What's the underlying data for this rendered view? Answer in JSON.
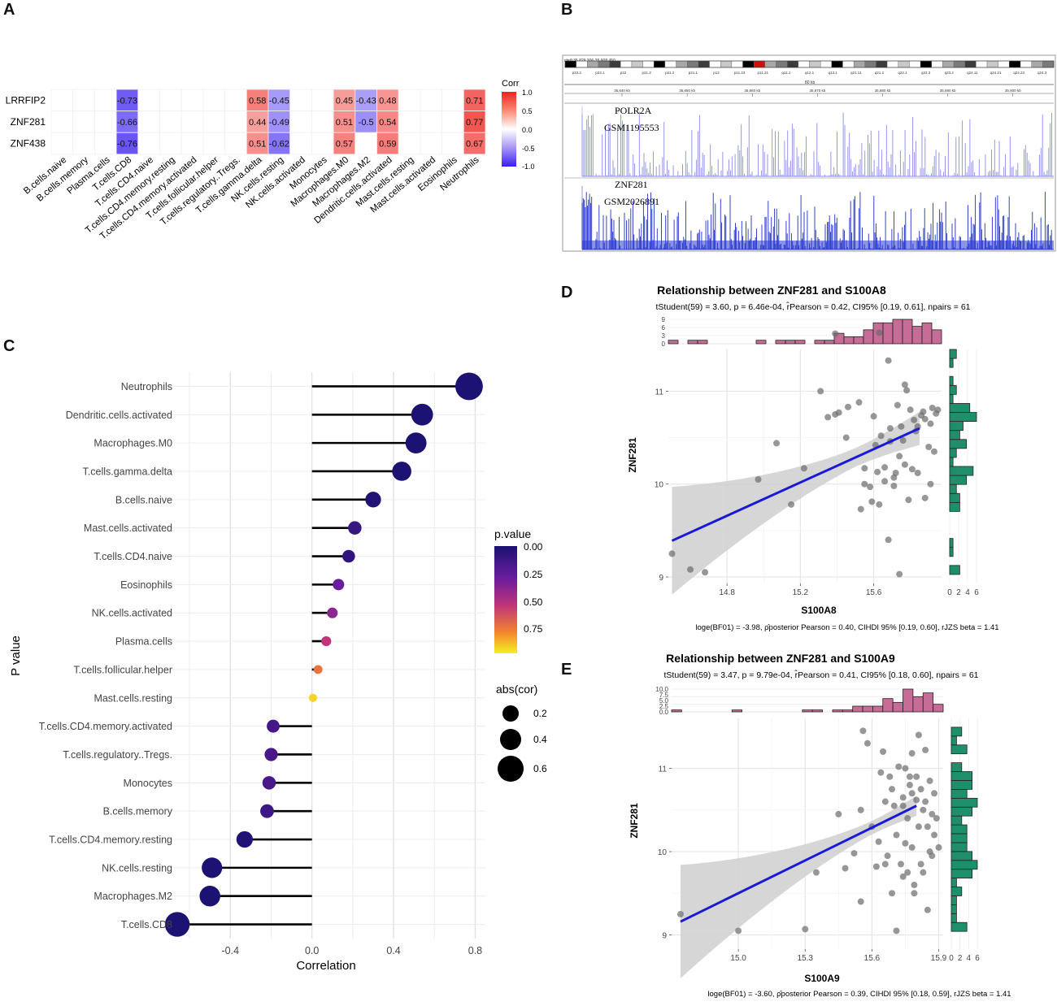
{
  "chart_data": [
    {
      "panel": "A",
      "type": "heatmap",
      "legend_title": "Corr",
      "legend_ticks": [
        "1.0",
        "0.5",
        "0.0",
        "-0.5",
        "-1.0"
      ],
      "rows": [
        "LRRFIP2",
        "ZNF281",
        "ZNF438"
      ],
      "columns": [
        "B.cells.naive",
        "B.cells.memory",
        "Plasma.cells",
        "T.cells.CD8",
        "T.cells.CD4.naive",
        "T.cells.CD4.memory.resting",
        "T.cells.CD4.memory.activated",
        "T.cells.follicular.helper",
        "T.cells.regulatory..Tregs.",
        "T.cells.gamma.delta",
        "NK.cells.resting",
        "NK.cells.activated",
        "Monocytes",
        "Macrophages.M0",
        "Macrophages.M2",
        "Dendritic.cells.activated",
        "Mast.cells.resting",
        "Mast.cells.activated",
        "Eosinophils",
        "Neutrophils"
      ],
      "values": [
        [
          null,
          null,
          null,
          -0.73,
          null,
          null,
          null,
          null,
          null,
          0.58,
          -0.45,
          null,
          null,
          0.45,
          -0.43,
          0.48,
          null,
          null,
          null,
          0.71
        ],
        [
          null,
          null,
          null,
          -0.66,
          null,
          null,
          null,
          null,
          null,
          0.44,
          -0.49,
          null,
          null,
          0.51,
          -0.5,
          0.54,
          null,
          null,
          null,
          0.77
        ],
        [
          null,
          null,
          null,
          -0.76,
          null,
          null,
          null,
          null,
          null,
          0.51,
          -0.62,
          null,
          null,
          0.57,
          null,
          0.59,
          null,
          null,
          null,
          0.67
        ]
      ],
      "labels": [
        [
          "",
          "",
          "",
          "-0.73",
          "",
          "",
          "",
          "",
          "",
          "0.58",
          "-0.45",
          "",
          "",
          "0.45",
          "-0.43",
          "0.48",
          "",
          "",
          "",
          "0.71"
        ],
        [
          "",
          "",
          "",
          "-0.66",
          "",
          "",
          "",
          "",
          "",
          "0.44",
          "-0.49",
          "",
          "",
          "0.51",
          "-0.5",
          "0.54",
          "",
          "",
          "",
          "0.77"
        ],
        [
          "",
          "",
          "",
          "-0.76",
          "",
          "",
          "",
          "",
          "",
          "0.51",
          "-0.62",
          "",
          "",
          "0.57",
          "",
          "0.59",
          "",
          "",
          "",
          "0.67"
        ]
      ]
    },
    {
      "panel": "B",
      "type": "genome-track",
      "locus": "chr8:35,829,306-35,908,450",
      "scale_label": "80 kb",
      "bands": [
        "p23.2",
        "p23.1",
        "p22",
        "p21.3",
        "p21.2",
        "p21.1",
        "p12",
        "p11.23",
        "p11.21",
        "q11.1",
        "q12.1",
        "q13.1",
        "q21.11",
        "q21.2",
        "q22.1",
        "q22.3",
        "q23.2",
        "q24.11",
        "q24.21",
        "q24.23",
        "q24.3"
      ],
      "coordinates": [
        "35,840 kb",
        "35,850 kb",
        "35,860 kb",
        "35,870 kb",
        "35,880 kb",
        "35,890 kb",
        "35,900 kb"
      ],
      "tracks": [
        {
          "name": "POLR2A",
          "sample": "GSM1195553",
          "color": "#8a8be6"
        },
        {
          "name": "ZNF281",
          "sample": "GSM2026891",
          "color": "#1f2fc8"
        }
      ]
    },
    {
      "panel": "C",
      "type": "lollipop",
      "title": "",
      "xlabel": "Correlation",
      "ylabel": "P value",
      "xlim": [
        -0.7,
        0.85
      ],
      "xticks": [
        -0.4,
        0.0,
        0.4,
        0.8
      ],
      "xtick_labels": [
        "-0.4",
        "0.0",
        "0.4",
        "0.8"
      ],
      "color_legend_title": "p.value",
      "color_ticks": [
        "0.00",
        "0.25",
        "0.50",
        "0.75"
      ],
      "size_legend_title": "abs(cor)",
      "size_ticks": [
        "0.2",
        "0.4",
        "0.6"
      ],
      "categories": [
        "Neutrophils",
        "Dendritic.cells.activated",
        "Macrophages.M0",
        "T.cells.gamma.delta",
        "B.cells.naive",
        "Mast.cells.activated",
        "T.cells.CD4.naive",
        "Eosinophils",
        "NK.cells.activated",
        "Plasma.cells",
        "T.cells.follicular.helper",
        "Mast.cells.resting",
        "T.cells.CD4.memory.activated",
        "T.cells.regulatory..Tregs.",
        "Monocytes",
        "B.cells.memory",
        "T.cells.CD4.memory.resting",
        "NK.cells.resting",
        "Macrophages.M2",
        "T.cells.CD8"
      ],
      "correlation": [
        0.77,
        0.54,
        0.51,
        0.44,
        0.3,
        0.21,
        0.18,
        0.13,
        0.1,
        0.07,
        0.03,
        0.005,
        -0.19,
        -0.2,
        -0.21,
        -0.22,
        -0.33,
        -0.49,
        -0.5,
        -0.66
      ],
      "p_value": [
        0.0,
        0.0,
        0.0,
        0.0,
        0.02,
        0.1,
        0.08,
        0.3,
        0.4,
        0.55,
        0.75,
        0.95,
        0.15,
        0.17,
        0.17,
        0.12,
        0.02,
        0.0,
        0.0,
        0.0
      ]
    },
    {
      "panel": "D",
      "type": "scatter",
      "title": "Relationship between ZNF281 and S100A8",
      "stats_top": "tStudent(59) = 3.60, p = 6.46e-04, r̂Pearson = 0.42, CI95% [0.19, 0.61], npairs = 61",
      "stats_bottom": "loge(BF01) = -3.98, ρ̂posterior Pearson = 0.40, CIHDI 95% [0.19, 0.60], rJZS beta = 1.41",
      "xlabel": "S100A8",
      "ylabel": "ZNF281",
      "xlim": [
        14.48,
        15.97
      ],
      "ylim": [
        8.93,
        11.45
      ],
      "xticks": [
        "14.8",
        "15.2",
        "15.6"
      ],
      "yticks": [
        "9",
        "10",
        "11"
      ],
      "side_hist_ticks": [
        "0",
        "2",
        "4",
        "6"
      ],
      "top_hist_ticks": [
        "0",
        "3",
        "6",
        "9"
      ],
      "regression": {
        "x0": 14.5,
        "y0": 9.39,
        "x1": 15.85,
        "y1": 10.6
      },
      "points": [
        [
          14.5,
          9.25
        ],
        [
          14.6,
          9.08
        ],
        [
          14.68,
          9.05
        ],
        [
          14.97,
          10.05
        ],
        [
          15.07,
          10.44
        ],
        [
          15.15,
          9.78
        ],
        [
          15.22,
          10.17
        ],
        [
          15.31,
          11.0
        ],
        [
          15.35,
          10.72
        ],
        [
          15.39,
          10.75
        ],
        [
          15.41,
          10.77
        ],
        [
          15.46,
          10.83
        ],
        [
          15.39,
          11.62
        ],
        [
          15.45,
          10.5
        ],
        [
          15.52,
          10.88
        ],
        [
          15.53,
          9.73
        ],
        [
          15.55,
          10.17
        ],
        [
          15.55,
          10.0
        ],
        [
          15.58,
          9.97
        ],
        [
          15.59,
          9.81
        ],
        [
          15.6,
          10.73
        ],
        [
          15.61,
          10.42
        ],
        [
          15.63,
          9.78
        ],
        [
          15.64,
          10.52
        ],
        [
          15.66,
          10.18
        ],
        [
          15.66,
          10.03
        ],
        [
          15.68,
          11.33
        ],
        [
          15.69,
          10.6
        ],
        [
          15.69,
          10.46
        ],
        [
          15.71,
          10.07
        ],
        [
          15.71,
          9.98
        ],
        [
          15.72,
          10.12
        ],
        [
          15.73,
          10.85
        ],
        [
          15.74,
          10.3
        ],
        [
          15.75,
          10.62
        ],
        [
          15.76,
          10.47
        ],
        [
          15.77,
          10.21
        ],
        [
          15.77,
          11.07
        ],
        [
          15.78,
          11.01
        ],
        [
          15.79,
          9.83
        ],
        [
          15.8,
          10.8
        ],
        [
          15.81,
          10.16
        ],
        [
          15.82,
          10.69
        ],
        [
          15.83,
          10.57
        ],
        [
          15.84,
          10.62
        ],
        [
          15.84,
          10.12
        ],
        [
          15.86,
          10.74
        ],
        [
          15.87,
          10.78
        ],
        [
          15.88,
          10.7
        ],
        [
          15.88,
          9.85
        ],
        [
          15.9,
          10.4
        ],
        [
          15.91,
          10.0
        ],
        [
          15.92,
          10.82
        ],
        [
          15.93,
          10.35
        ],
        [
          15.94,
          10.76
        ],
        [
          15.95,
          10.8
        ],
        [
          15.62,
          10.13
        ],
        [
          15.63,
          11.63
        ],
        [
          15.68,
          9.4
        ],
        [
          15.74,
          9.03
        ],
        [
          15.91,
          10.65
        ]
      ]
    },
    {
      "panel": "E",
      "type": "scatter",
      "title": "Relationship between ZNF281 and S100A9",
      "stats_top": "tStudent(59) = 3.47, p = 9.79e-04, r̂Pearson = 0.41, CI95% [0.18, 0.60], npairs = 61",
      "stats_bottom": "loge(BF01) = -3.60, ρ̂posterior Pearson = 0.39, CIHDI 95% [0.18, 0.59], rJZS beta = 1.41",
      "xlabel": "S100A9",
      "ylabel": "ZNF281",
      "xlim": [
        14.7,
        15.92
      ],
      "ylim": [
        8.83,
        11.6
      ],
      "xticks": [
        "15.0",
        "15.3",
        "15.6",
        "15.9"
      ],
      "yticks": [
        "9",
        "10",
        "11"
      ],
      "side_hist_ticks": [
        "0",
        "2",
        "4",
        "6"
      ],
      "top_hist_ticks": [
        "0.0",
        "2.5",
        "5.0",
        "7.5",
        "10.0"
      ],
      "regression": {
        "x0": 14.74,
        "y0": 9.16,
        "x1": 15.8,
        "y1": 10.55
      },
      "points": [
        [
          14.74,
          9.25
        ],
        [
          15.0,
          9.05
        ],
        [
          15.3,
          9.07
        ],
        [
          15.35,
          9.75
        ],
        [
          15.45,
          10.45
        ],
        [
          15.48,
          9.8
        ],
        [
          15.52,
          9.98
        ],
        [
          15.55,
          10.5
        ],
        [
          15.56,
          11.45
        ],
        [
          15.55,
          9.4
        ],
        [
          15.58,
          11.3
        ],
        [
          15.6,
          10.3
        ],
        [
          15.62,
          9.82
        ],
        [
          15.63,
          10.12
        ],
        [
          15.64,
          10.95
        ],
        [
          15.65,
          11.2
        ],
        [
          15.66,
          10.6
        ],
        [
          15.67,
          9.95
        ],
        [
          15.68,
          10.9
        ],
        [
          15.69,
          10.75
        ],
        [
          15.69,
          9.5
        ],
        [
          15.7,
          10.55
        ],
        [
          15.71,
          10.2
        ],
        [
          15.71,
          9.05
        ],
        [
          15.72,
          11.02
        ],
        [
          15.73,
          9.85
        ],
        [
          15.74,
          10.65
        ],
        [
          15.74,
          9.7
        ],
        [
          15.75,
          11.0
        ],
        [
          15.75,
          10.1
        ],
        [
          15.76,
          10.4
        ],
        [
          15.76,
          9.75
        ],
        [
          15.77,
          10.9
        ],
        [
          15.77,
          10.8
        ],
        [
          15.78,
          10.7
        ],
        [
          15.78,
          10.05
        ],
        [
          15.78,
          11.18
        ],
        [
          15.79,
          9.6
        ],
        [
          15.79,
          9.5
        ],
        [
          15.8,
          10.62
        ],
        [
          15.8,
          10.9
        ],
        [
          15.81,
          11.4
        ],
        [
          15.81,
          10.3
        ],
        [
          15.82,
          9.85
        ],
        [
          15.82,
          10.75
        ],
        [
          15.83,
          10.5
        ],
        [
          15.83,
          9.75
        ],
        [
          15.84,
          10.6
        ],
        [
          15.84,
          11.22
        ],
        [
          15.85,
          10.3
        ],
        [
          15.85,
          9.3
        ],
        [
          15.86,
          10.85
        ],
        [
          15.86,
          10.0
        ],
        [
          15.87,
          10.45
        ],
        [
          15.87,
          9.95
        ],
        [
          15.88,
          10.2
        ],
        [
          15.88,
          10.7
        ],
        [
          15.89,
          10.4
        ],
        [
          15.9,
          10.05
        ],
        [
          15.66,
          9.85
        ],
        [
          15.74,
          10.55
        ]
      ]
    }
  ]
}
